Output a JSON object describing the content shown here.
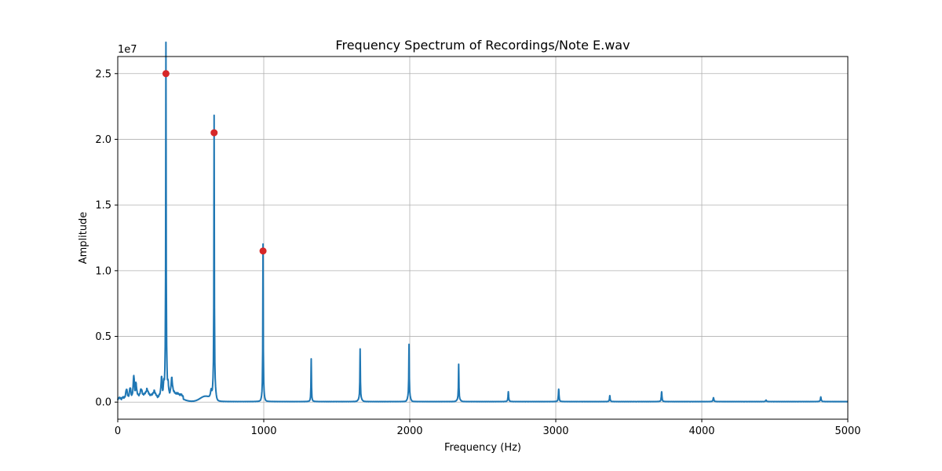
{
  "chart_data": {
    "type": "line",
    "title": "Frequency Spectrum of Recordings/Note E.wav",
    "xlabel": "Frequency (Hz)",
    "ylabel": "Amplitude",
    "y_offset_label": "1e7",
    "xlim": [
      0,
      5000
    ],
    "ylim": [
      -1300000,
      26300000
    ],
    "x_ticks": [
      0,
      1000,
      2000,
      3000,
      4000,
      5000
    ],
    "x_tick_labels": [
      "0",
      "1000",
      "2000",
      "3000",
      "4000",
      "5000"
    ],
    "y_ticks": [
      0,
      5000000,
      10000000,
      15000000,
      20000000,
      25000000
    ],
    "y_tick_labels": [
      "0.0",
      "0.5",
      "1.0",
      "1.5",
      "2.0",
      "2.5"
    ],
    "grid": true,
    "line_color": "#1f77b4",
    "peak_color": "#d62728",
    "peaks": [
      {
        "x": 330,
        "y": 25000000
      },
      {
        "x": 660,
        "y": 20500000
      },
      {
        "x": 995,
        "y": 11500000
      }
    ],
    "spectrum_peaks": [
      {
        "x": 60,
        "y": 700000,
        "w": 6
      },
      {
        "x": 85,
        "y": 800000,
        "w": 6
      },
      {
        "x": 110,
        "y": 1700000,
        "w": 5
      },
      {
        "x": 125,
        "y": 1100000,
        "w": 5
      },
      {
        "x": 160,
        "y": 500000,
        "w": 8
      },
      {
        "x": 200,
        "y": 450000,
        "w": 8
      },
      {
        "x": 250,
        "y": 400000,
        "w": 8
      },
      {
        "x": 300,
        "y": 1600000,
        "w": 5
      },
      {
        "x": 315,
        "y": 1200000,
        "w": 4
      },
      {
        "x": 330,
        "y": 25000000,
        "w": 1.6
      },
      {
        "x": 345,
        "y": 1000000,
        "w": 5
      },
      {
        "x": 370,
        "y": 1300000,
        "w": 6
      },
      {
        "x": 640,
        "y": 700000,
        "w": 6
      },
      {
        "x": 660,
        "y": 20500000,
        "w": 1.6
      },
      {
        "x": 995,
        "y": 11500000,
        "w": 1.6
      },
      {
        "x": 1325,
        "y": 3250000,
        "w": 1.8
      },
      {
        "x": 1660,
        "y": 3800000,
        "w": 1.8
      },
      {
        "x": 1995,
        "y": 3950000,
        "w": 1.8
      },
      {
        "x": 2335,
        "y": 2700000,
        "w": 1.8
      },
      {
        "x": 2675,
        "y": 750000,
        "w": 2.5
      },
      {
        "x": 3020,
        "y": 950000,
        "w": 2.5
      },
      {
        "x": 3370,
        "y": 450000,
        "w": 2.5
      },
      {
        "x": 3725,
        "y": 750000,
        "w": 2.5
      },
      {
        "x": 4080,
        "y": 300000,
        "w": 3
      },
      {
        "x": 4440,
        "y": 120000,
        "w": 3
      },
      {
        "x": 4815,
        "y": 350000,
        "w": 3
      }
    ],
    "noise_bumps": [
      {
        "x": 200,
        "y": 250000,
        "w": 80
      },
      {
        "x": 400,
        "y": 350000,
        "w": 60
      },
      {
        "x": 600,
        "y": 400000,
        "w": 50
      },
      {
        "x": 660,
        "y": 1200000,
        "w": 12
      },
      {
        "x": 330,
        "y": 2000000,
        "w": 10
      },
      {
        "x": 995,
        "y": 500000,
        "w": 10
      },
      {
        "x": 1660,
        "y": 200000,
        "w": 15
      },
      {
        "x": 1995,
        "y": 400000,
        "w": 12
      },
      {
        "x": 2335,
        "y": 150000,
        "w": 15
      }
    ]
  }
}
